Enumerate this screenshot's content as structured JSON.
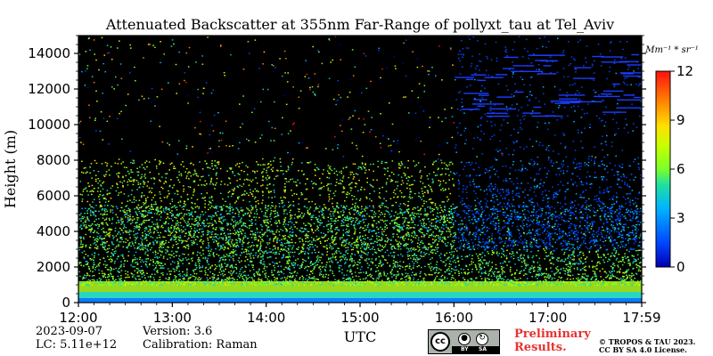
{
  "chart_data": {
    "type": "heatmap",
    "title": "Attenuated Backscatter at 355nm Far-Range of pollyxt_tau at Tel_Aviv",
    "ylabel": "Height (m)",
    "xlabel": "UTC",
    "x_ticks": [
      "12:00",
      "13:00",
      "14:00",
      "15:00",
      "16:00",
      "17:00",
      "17:59"
    ],
    "y_ticks": [
      0,
      2000,
      4000,
      6000,
      8000,
      10000,
      12000,
      14000
    ],
    "ylim": [
      0,
      15000
    ],
    "colorbar": {
      "label": "Mm⁻¹ * sr⁻¹",
      "ticks": [
        0,
        3,
        6,
        9,
        12
      ],
      "range": [
        0,
        12
      ],
      "colormap": "jet"
    },
    "features": {
      "boundary_layer_top_m": 3000,
      "aerosol_layer_top_m": 8000,
      "cloud_onset_utc": "16:00",
      "cloud_base_m": 10500
    }
  },
  "footer": {
    "date": "2023-09-07",
    "lc": "LC: 5.11e+12",
    "version": "Version: 3.6",
    "calibration": "Calibration: Raman",
    "preliminary_line1": "Preliminary",
    "preliminary_line2": "Results.",
    "copyright_line1": "© TROPOS & TAU 2023.",
    "copyright_line2": "CC BY SA 4.0 License.",
    "license_badge": {
      "cc": "cc",
      "by": "BY",
      "sa": "SA"
    }
  },
  "colors": {
    "background": "#000000",
    "accent_preliminary": "#e8322e"
  }
}
